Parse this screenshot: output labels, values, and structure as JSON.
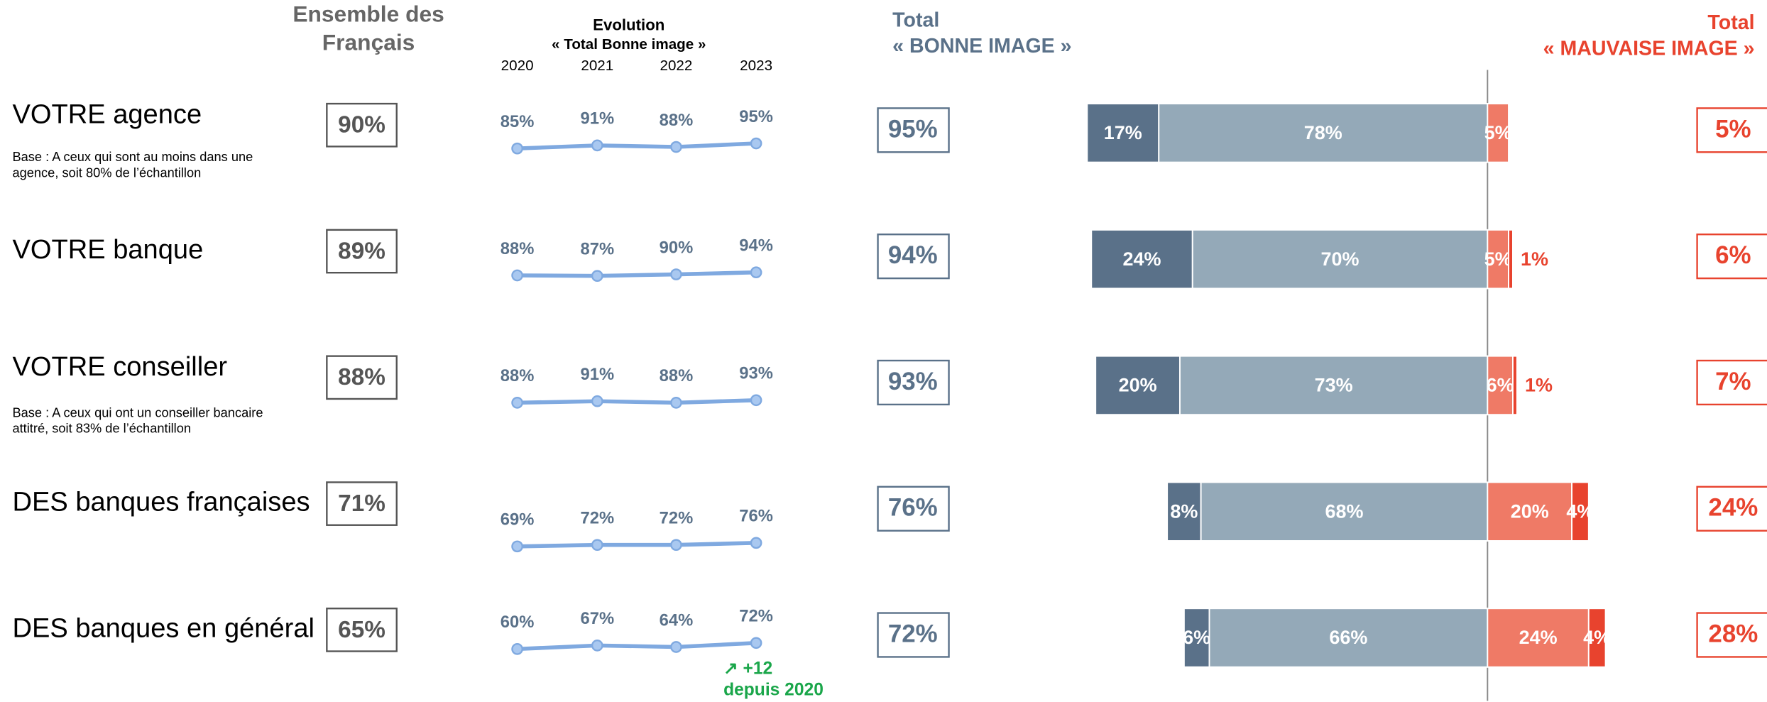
{
  "chart_data": {
    "type": "image-dashboard",
    "headers": {
      "ensemble": [
        "Ensemble des",
        "Français"
      ],
      "evolution": "Evolution",
      "evolution_sub": "« Total Bonne image »",
      "bonne": [
        "Total",
        "« BONNE IMAGE »"
      ],
      "mauvaise": [
        "Total",
        "« MAUVAISE IMAGE »"
      ]
    },
    "years": [
      "2020",
      "2021",
      "2022",
      "2023"
    ],
    "colors": [
      "#5a7189",
      "#94a9b8",
      "#ef7a66",
      "#e8432e"
    ],
    "rows": [
      {
        "label": "VOTRE agence",
        "base": [
          "Base : A ceux qui sont au moins dans une",
          "agence, soit 80% de l’échantillon"
        ],
        "ensemble": {
          "value": 90,
          "label": "90%"
        },
        "evolution": {
          "values": [
            85,
            91,
            88,
            95
          ],
          "value_labels": [
            "85%",
            "91%",
            "88%",
            "95%"
          ]
        },
        "total_bonne": {
          "value": 95,
          "label": "95%"
        },
        "segments": {
          "values": [
            17,
            78,
            5,
            null
          ],
          "value_labels": [
            "17%",
            "78%",
            "5%",
            null
          ]
        },
        "total_mauvaise": {
          "value": 5,
          "label": "5%"
        }
      },
      {
        "label": "VOTRE banque",
        "ensemble": {
          "value": 89,
          "label": "89%"
        },
        "evolution": {
          "values": [
            88,
            87,
            90,
            94
          ],
          "value_labels": [
            "88%",
            "87%",
            "90%",
            "94%"
          ]
        },
        "total_bonne": {
          "value": 94,
          "label": "94%"
        },
        "segments": {
          "values": [
            24,
            70,
            5,
            1
          ],
          "value_labels": [
            "24%",
            "70%",
            "5%",
            "1%"
          ]
        },
        "total_mauvaise": {
          "value": 6,
          "label": "6%"
        }
      },
      {
        "label": "VOTRE conseiller",
        "base": [
          "Base : A ceux qui ont un conseiller bancaire",
          "attitré, soit 83% de l’échantillon"
        ],
        "ensemble": {
          "value": 88,
          "label": "88%"
        },
        "evolution": {
          "values": [
            88,
            91,
            88,
            93
          ],
          "value_labels": [
            "88%",
            "91%",
            "88%",
            "93%"
          ]
        },
        "total_bonne": {
          "value": 93,
          "label": "93%"
        },
        "segments": {
          "values": [
            20,
            73,
            6,
            1
          ],
          "value_labels": [
            "20%",
            "73%",
            "6%",
            "1%"
          ]
        },
        "total_mauvaise": {
          "value": 7,
          "label": "7%"
        }
      },
      {
        "label": "DES banques françaises",
        "ensemble": {
          "value": 71,
          "label": "71%"
        },
        "evolution": {
          "values": [
            69,
            72,
            72,
            76
          ],
          "value_labels": [
            "69%",
            "72%",
            "72%",
            "76%"
          ]
        },
        "total_bonne": {
          "value": 76,
          "label": "76%"
        },
        "segments": {
          "values": [
            8,
            68,
            20,
            4
          ],
          "value_labels": [
            "8%",
            "68%",
            "20%",
            "4%"
          ]
        },
        "total_mauvaise": {
          "value": 24,
          "label": "24%"
        }
      },
      {
        "label": "DES banques en général",
        "ensemble": {
          "value": 65,
          "label": "65%"
        },
        "evolution": {
          "values": [
            60,
            67,
            64,
            72
          ],
          "value_labels": [
            "60%",
            "67%",
            "64%",
            "72%"
          ]
        },
        "total_bonne": {
          "value": 72,
          "label": "72%"
        },
        "segments": {
          "values": [
            6,
            66,
            24,
            4
          ],
          "value_labels": [
            "6%",
            "66%",
            "24%",
            "4%"
          ]
        },
        "total_mauvaise": {
          "value": 28,
          "label": "28%"
        },
        "annotation": [
          "↗ +12",
          "depuis 2020"
        ]
      }
    ]
  }
}
